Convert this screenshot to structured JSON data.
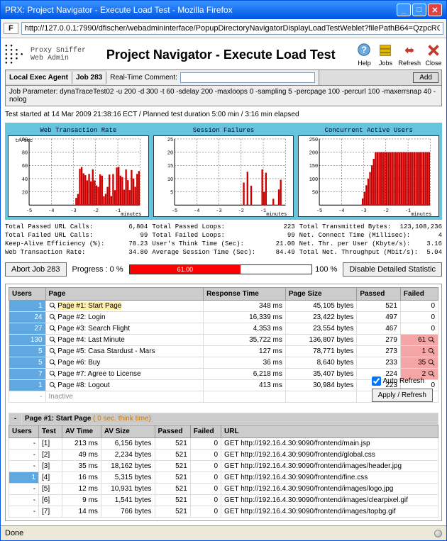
{
  "window": {
    "title": "PRX: Project Navigator - Execute Load Test - Mozilla Firefox"
  },
  "address_bar": {
    "url": "http://127.0.0.1:7990/dfischer/webadmininterface/PopupDirectoryNavigatorDisplayLoadTestWeblet?filePathB64=QzpcRG9rdW1lbnRlIHVu2CBF"
  },
  "branding": {
    "line1": "Proxy Sniffer",
    "line2": "Web Admin"
  },
  "page_title": "Project Navigator - Execute Load Test",
  "toolbar_icons": {
    "help": "Help",
    "jobs": "Jobs",
    "refresh": "Refresh",
    "close": "Close"
  },
  "controls": {
    "agent_label": "Local Exec Agent",
    "job_label": "Job 283",
    "comment_label": "Real-Time Comment:",
    "comment_value": "",
    "add_label": "Add"
  },
  "job_parameter": "Job Parameter: dynaTraceTest02 -u 200 -d 300 -t 60 -sdelay 200 -maxloops 0 -sampling 5 -percpage 100 -percurl 100 -maxerrsnap 40 -nolog",
  "test_status": "Test started at 14 Mar 2009 21:38:16 ECT  /  Planned test duration 5:00 min  /  3:16 min elapsed",
  "charts": {
    "bg_color": "#67c4df",
    "items": [
      {
        "title": "Web Transaction Rate",
        "ymax": 100,
        "ylabel_top": "tr/sec",
        "xlabel": "minutes",
        "xticks": "-5  -4  -3  -2  -1",
        "yticks": "100\n80\n60\n40\n20",
        "line_color": "#cc0000"
      },
      {
        "title": "Session Failures",
        "ymax": 25,
        "ylabel_top": "",
        "xlabel": "minutes",
        "xticks": "-5  -4  -3  -2  -1",
        "yticks": "25\n20\n15\n10\n5",
        "line_color": "#cc0000"
      },
      {
        "title": "Concurrent Active Users",
        "ymax": 250,
        "ylabel_top": "",
        "xlabel": "minutes",
        "xticks": "-5  -4  -3  -2  -1",
        "yticks": "250\n200\n150\n100\n50",
        "line_color": "#cc0000"
      }
    ]
  },
  "stat_blocks": [
    [
      {
        "l": "Total Passed URL Calls:",
        "v": "6,804"
      },
      {
        "l": "Total Failed URL Calls:",
        "v": "99"
      },
      {
        "l": "Keep-Alive Efficiency (%):",
        "v": "78.23"
      },
      {
        "l": "Web Transaction Rate:",
        "v": "34.80"
      }
    ],
    [
      {
        "l": "Total Passed Loops:",
        "v": "223"
      },
      {
        "l": "Total Failed Loops:",
        "v": "99"
      },
      {
        "l": "User's Think Time (Sec):",
        "v": "21.00"
      },
      {
        "l": "Average Session Time (Sec):",
        "v": "84.49"
      }
    ],
    [
      {
        "l": "Total Transmitted Bytes:",
        "v": "123,108,236"
      },
      {
        "l": "Net. Connect Time (Millisec):",
        "v": "4"
      },
      {
        "l": "Net. Thr. per User (Kbyte/s):",
        "v": "3.16"
      },
      {
        "l": "Total Net. Throughput (Mbit/s):",
        "v": "5.04"
      }
    ]
  ],
  "actions": {
    "abort_label": "Abort Job 283",
    "progress_label": "Progress : 0 %",
    "progress_percent": 61,
    "progress_text": "61.00",
    "hundred_label": "100 %",
    "disable_label": "Disable Detailed Statistic",
    "auto_refresh_label": "Auto Refresh",
    "apply_refresh_label": "Apply / Refresh"
  },
  "main_table": {
    "headers": [
      "Users",
      "Page",
      "Response Time",
      "Page Size",
      "Passed",
      "Failed"
    ],
    "rows": [
      {
        "users": "1",
        "users_hl": true,
        "page": "Page #1: Start Page",
        "page_hl": true,
        "resp": "348 ms",
        "size": "45,105 bytes",
        "passed": "521",
        "failed": "0"
      },
      {
        "users": "24",
        "users_hl": true,
        "page": "Page #2: Login",
        "resp": "16,339 ms",
        "size": "23,422 bytes",
        "passed": "497",
        "failed": "0"
      },
      {
        "users": "27",
        "users_hl": true,
        "page": "Page #3: Search Flight",
        "resp": "4,353 ms",
        "size": "23,554 bytes",
        "passed": "467",
        "failed": "0"
      },
      {
        "users": "130",
        "users_hl": true,
        "page": "Page #4: Last Minute",
        "resp": "35,722 ms",
        "size": "136,807 bytes",
        "passed": "279",
        "failed": "61",
        "fail_red": true,
        "fail_mag": true
      },
      {
        "users": "5",
        "users_hl": true,
        "page": "Page #5: Casa Stardust - Mars",
        "resp": "127 ms",
        "size": "78,771 bytes",
        "passed": "273",
        "failed": "1",
        "fail_red": true,
        "fail_mag": true
      },
      {
        "users": "5",
        "users_hl": true,
        "page": "Page #6: Buy",
        "resp": "36 ms",
        "size": "8,640 bytes",
        "passed": "233",
        "failed": "35",
        "fail_red": true,
        "fail_mag": true
      },
      {
        "users": "7",
        "users_hl": true,
        "page": "Page #7: Agree to License",
        "resp": "6,218 ms",
        "size": "35,407 bytes",
        "passed": "224",
        "failed": "2",
        "fail_red": true,
        "fail_mag": true
      },
      {
        "users": "1",
        "users_hl": true,
        "page": "Page #8: Logout",
        "resp": "413 ms",
        "size": "30,984 bytes",
        "passed": "223",
        "failed": "0"
      },
      {
        "users": "-",
        "page": "Inactive",
        "resp": "",
        "size": "",
        "passed": "",
        "failed": "",
        "inactive": true
      }
    ]
  },
  "sub_header": {
    "dash": "-",
    "title": "Page #1: Start Page",
    "note": "  ( 0 sec. think time)"
  },
  "detail_table": {
    "headers": [
      "Users",
      "Test",
      "AV Time",
      "AV Size",
      "Passed",
      "Failed",
      "URL"
    ],
    "rows": [
      {
        "users": "-",
        "test": "[1]",
        "time": "213 ms",
        "size": "6,156 bytes",
        "passed": "521",
        "failed": "0",
        "url": "GET http://192.16.4.30:9090/frontend/main.jsp"
      },
      {
        "users": "-",
        "test": "[2]",
        "time": "49 ms",
        "size": "2,234 bytes",
        "passed": "521",
        "failed": "0",
        "url": "GET http://192.16.4.30:9090/frontend/global.css"
      },
      {
        "users": "-",
        "test": "[3]",
        "time": "35 ms",
        "size": "18,162 bytes",
        "passed": "521",
        "failed": "0",
        "url": "GET http://192.16.4.30:9090/frontend/images/header.jpg"
      },
      {
        "users": "1",
        "users_hl": true,
        "test": "[4]",
        "time": "16 ms",
        "size": "5,315 bytes",
        "passed": "521",
        "failed": "0",
        "url": "GET http://192.16.4.30:9090/frontend/fine.css"
      },
      {
        "users": "-",
        "test": "[5]",
        "time": "12 ms",
        "size": "10,931 bytes",
        "passed": "521",
        "failed": "0",
        "url": "GET http://192.16.4.30:9090/frontend/images/logo.jpg"
      },
      {
        "users": "-",
        "test": "[6]",
        "time": "9 ms",
        "size": "1,541 bytes",
        "passed": "521",
        "failed": "0",
        "url": "GET http://192.16.4.30:9090/frontend/images/clearpixel.gif"
      },
      {
        "users": "-",
        "test": "[7]",
        "time": "14 ms",
        "size": "766 bytes",
        "passed": "521",
        "failed": "0",
        "url": "GET http://192.16.4.30:9090/frontend/images/topbg.gif"
      }
    ]
  },
  "statusbar": {
    "text": "Done"
  }
}
